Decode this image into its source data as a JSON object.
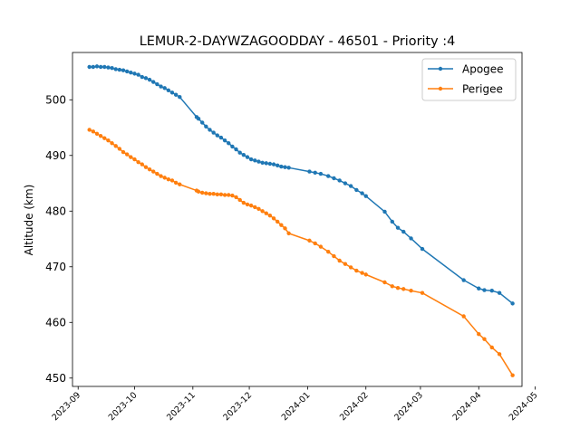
{
  "chart_data": {
    "type": "line",
    "title": "LEMUR-2-DAYWZAGOODDAY - 46501 - Priority :4",
    "xlabel": "",
    "ylabel": "Altitude (km)",
    "xlim": [
      "2023-08-29",
      "2024-04-24"
    ],
    "ylim": [
      448.5,
      508.5
    ],
    "yticks": [
      450,
      460,
      470,
      480,
      490,
      500
    ],
    "xticks": [
      "2023-09",
      "2023-10",
      "2023-11",
      "2023-12",
      "2024-01",
      "2024-02",
      "2024-03",
      "2024-04",
      "2024-05"
    ],
    "grid": false,
    "legend": "top-right",
    "colors": {
      "apogee": "#1f77b4",
      "perigee": "#ff7f0e"
    },
    "series": [
      {
        "name": "Apogee",
        "x": [
          "2023-09-07",
          "2023-09-09",
          "2023-09-11",
          "2023-09-13",
          "2023-09-15",
          "2023-09-17",
          "2023-09-19",
          "2023-09-21",
          "2023-09-23",
          "2023-09-25",
          "2023-09-27",
          "2023-09-29",
          "2023-10-01",
          "2023-10-03",
          "2023-10-05",
          "2023-10-07",
          "2023-10-09",
          "2023-10-11",
          "2023-10-13",
          "2023-10-15",
          "2023-10-17",
          "2023-10-19",
          "2023-10-21",
          "2023-10-23",
          "2023-10-25",
          "2023-11-03",
          "2023-11-04",
          "2023-11-06",
          "2023-11-08",
          "2023-11-10",
          "2023-11-12",
          "2023-11-14",
          "2023-11-16",
          "2023-11-18",
          "2023-11-20",
          "2023-11-22",
          "2023-11-24",
          "2023-11-26",
          "2023-11-28",
          "2023-11-30",
          "2023-12-02",
          "2023-12-04",
          "2023-12-06",
          "2023-12-08",
          "2023-12-10",
          "2023-12-12",
          "2023-12-14",
          "2023-12-16",
          "2023-12-18",
          "2023-12-20",
          "2023-12-22",
          "2024-01-02",
          "2024-01-05",
          "2024-01-08",
          "2024-01-12",
          "2024-01-15",
          "2024-01-18",
          "2024-01-21",
          "2024-01-24",
          "2024-01-27",
          "2024-01-30",
          "2024-02-01",
          "2024-02-11",
          "2024-02-15",
          "2024-02-18",
          "2024-02-21",
          "2024-02-25",
          "2024-03-02",
          "2024-03-24",
          "2024-04-01",
          "2024-04-04",
          "2024-04-08",
          "2024-04-12",
          "2024-04-19"
        ],
        "values": [
          505.9,
          505.9,
          506.0,
          505.9,
          505.9,
          505.8,
          505.7,
          505.5,
          505.4,
          505.3,
          505.1,
          504.9,
          504.7,
          504.5,
          504.1,
          503.9,
          503.6,
          503.2,
          502.8,
          502.4,
          502.1,
          501.7,
          501.3,
          500.9,
          500.5,
          496.9,
          496.6,
          495.9,
          495.2,
          494.6,
          494.1,
          493.6,
          493.2,
          492.7,
          492.2,
          491.6,
          491.1,
          490.5,
          490.1,
          489.7,
          489.3,
          489.1,
          488.9,
          488.7,
          488.6,
          488.5,
          488.4,
          488.2,
          488.0,
          487.9,
          487.8,
          487.1,
          486.9,
          486.7,
          486.3,
          485.9,
          485.5,
          485.0,
          484.5,
          483.8,
          483.2,
          482.7,
          479.9,
          478.1,
          477.0,
          476.3,
          475.1,
          473.2,
          467.6,
          466.1,
          465.8,
          465.7,
          465.3,
          463.4
        ]
      },
      {
        "name": "Perigee",
        "x": [
          "2023-09-07",
          "2023-09-09",
          "2023-09-11",
          "2023-09-13",
          "2023-09-15",
          "2023-09-17",
          "2023-09-19",
          "2023-09-21",
          "2023-09-23",
          "2023-09-25",
          "2023-09-27",
          "2023-09-29",
          "2023-10-01",
          "2023-10-03",
          "2023-10-05",
          "2023-10-07",
          "2023-10-09",
          "2023-10-11",
          "2023-10-13",
          "2023-10-15",
          "2023-10-17",
          "2023-10-19",
          "2023-10-21",
          "2023-10-23",
          "2023-10-25",
          "2023-11-03",
          "2023-11-04",
          "2023-11-06",
          "2023-11-08",
          "2023-11-10",
          "2023-11-12",
          "2023-11-14",
          "2023-11-16",
          "2023-11-18",
          "2023-11-20",
          "2023-11-22",
          "2023-11-24",
          "2023-11-26",
          "2023-11-28",
          "2023-11-30",
          "2023-12-02",
          "2023-12-04",
          "2023-12-06",
          "2023-12-08",
          "2023-12-10",
          "2023-12-12",
          "2023-12-14",
          "2023-12-16",
          "2023-12-18",
          "2023-12-20",
          "2023-12-22",
          "2024-01-02",
          "2024-01-05",
          "2024-01-08",
          "2024-01-12",
          "2024-01-15",
          "2024-01-18",
          "2024-01-21",
          "2024-01-24",
          "2024-01-27",
          "2024-01-30",
          "2024-02-01",
          "2024-02-11",
          "2024-02-15",
          "2024-02-18",
          "2024-02-21",
          "2024-02-25",
          "2024-03-02",
          "2024-03-24",
          "2024-04-01",
          "2024-04-04",
          "2024-04-08",
          "2024-04-12",
          "2024-04-19"
        ],
        "values": [
          494.6,
          494.3,
          493.9,
          493.5,
          493.1,
          492.7,
          492.2,
          491.7,
          491.2,
          490.6,
          490.2,
          489.7,
          489.3,
          488.8,
          488.4,
          487.9,
          487.5,
          487.1,
          486.7,
          486.3,
          486.0,
          485.7,
          485.5,
          485.1,
          484.8,
          483.7,
          483.5,
          483.3,
          483.2,
          483.1,
          483.1,
          483.0,
          483.0,
          482.9,
          482.9,
          482.8,
          482.5,
          482.0,
          481.5,
          481.2,
          481.0,
          480.7,
          480.4,
          480.0,
          479.6,
          479.2,
          478.7,
          478.1,
          477.5,
          476.9,
          476.0,
          474.7,
          474.2,
          473.6,
          472.7,
          471.9,
          471.1,
          470.5,
          469.9,
          469.3,
          468.9,
          468.6,
          467.2,
          466.5,
          466.2,
          466.0,
          465.7,
          465.3,
          461.1,
          457.9,
          457.0,
          455.5,
          454.3,
          450.5
        ]
      }
    ]
  }
}
